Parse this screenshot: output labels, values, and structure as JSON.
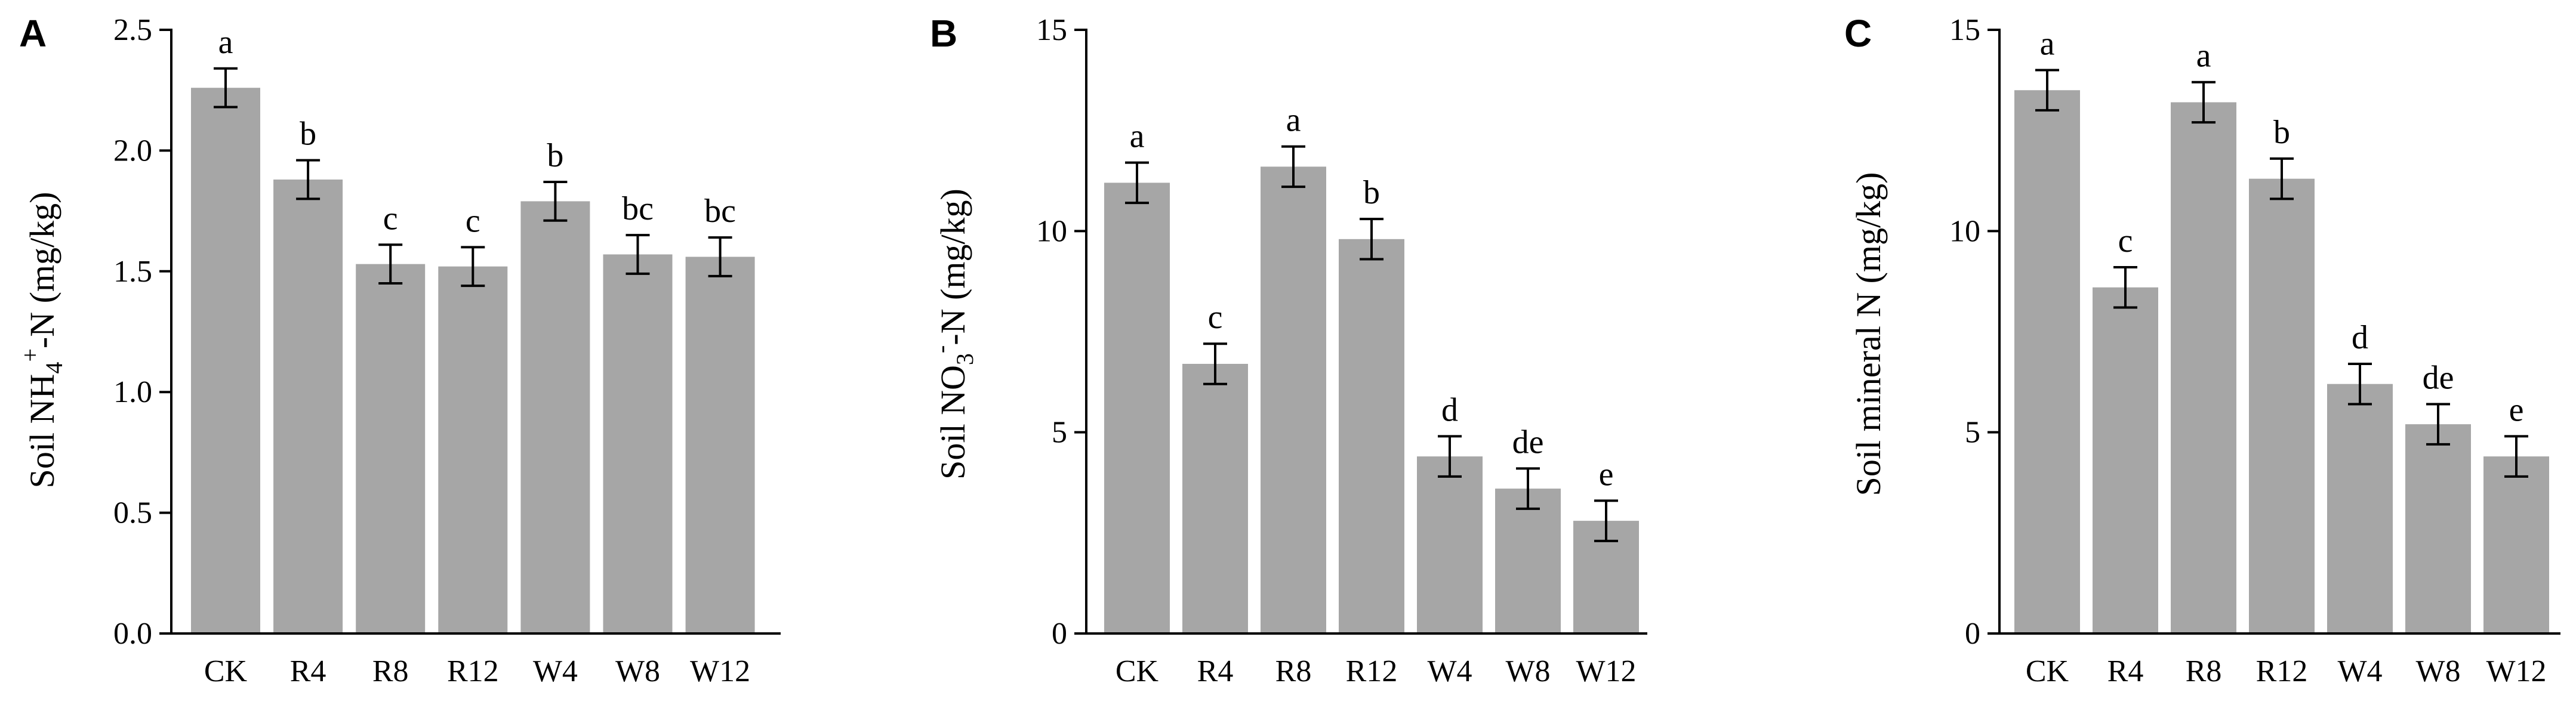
{
  "chart_data": [
    {
      "panel": "A",
      "type": "bar",
      "ylabel_parts": [
        "Soil NH",
        "4",
        "+",
        "-N (mg/kg)"
      ],
      "categories": [
        "CK",
        "R4",
        "R8",
        "R12",
        "W4",
        "W8",
        "W12"
      ],
      "values": [
        2.26,
        1.88,
        1.53,
        1.52,
        1.79,
        1.57,
        1.56
      ],
      "errors": [
        0.08,
        0.08,
        0.08,
        0.08,
        0.08,
        0.08,
        0.08
      ],
      "letters": [
        "a",
        "b",
        "c",
        "c",
        "b",
        "bc",
        "bc"
      ],
      "ylim": [
        0,
        2.5
      ],
      "yticks": [
        0.0,
        0.5,
        1.0,
        1.5,
        2.0,
        2.5
      ],
      "ytick_labels": [
        "0.0",
        "0.5",
        "1.0",
        "1.5",
        "2.0",
        "2.5"
      ],
      "grid": false,
      "bar_color": "#a6a6a6"
    },
    {
      "panel": "B",
      "type": "bar",
      "ylabel_parts": [
        "Soil NO",
        "3",
        "-",
        "-N (mg/kg)"
      ],
      "categories": [
        "CK",
        "R4",
        "R8",
        "R12",
        "W4",
        "W8",
        "W12"
      ],
      "values": [
        11.2,
        6.7,
        11.6,
        9.8,
        4.4,
        3.6,
        2.8
      ],
      "errors": [
        0.5,
        0.5,
        0.5,
        0.5,
        0.5,
        0.5,
        0.5
      ],
      "letters": [
        "a",
        "c",
        "a",
        "b",
        "d",
        "de",
        "e"
      ],
      "ylim": [
        0,
        15
      ],
      "yticks": [
        0,
        5,
        10,
        15
      ],
      "ytick_labels": [
        "0",
        "5",
        "10",
        "15"
      ],
      "grid": false,
      "bar_color": "#a6a6a6"
    },
    {
      "panel": "C",
      "type": "bar",
      "ylabel_parts": [
        "Soil mineral N (mg/kg)"
      ],
      "categories": [
        "CK",
        "R4",
        "R8",
        "R12",
        "W4",
        "W8",
        "W12"
      ],
      "values": [
        13.5,
        8.6,
        13.2,
        11.3,
        6.2,
        5.2,
        4.4
      ],
      "errors": [
        0.5,
        0.5,
        0.5,
        0.5,
        0.5,
        0.5,
        0.5
      ],
      "letters": [
        "a",
        "c",
        "a",
        "b",
        "d",
        "de",
        "e"
      ],
      "ylim": [
        0,
        15
      ],
      "yticks": [
        0,
        5,
        10,
        15
      ],
      "ytick_labels": [
        "0",
        "5",
        "10",
        "15"
      ],
      "grid": false,
      "bar_color": "#a6a6a6"
    }
  ]
}
